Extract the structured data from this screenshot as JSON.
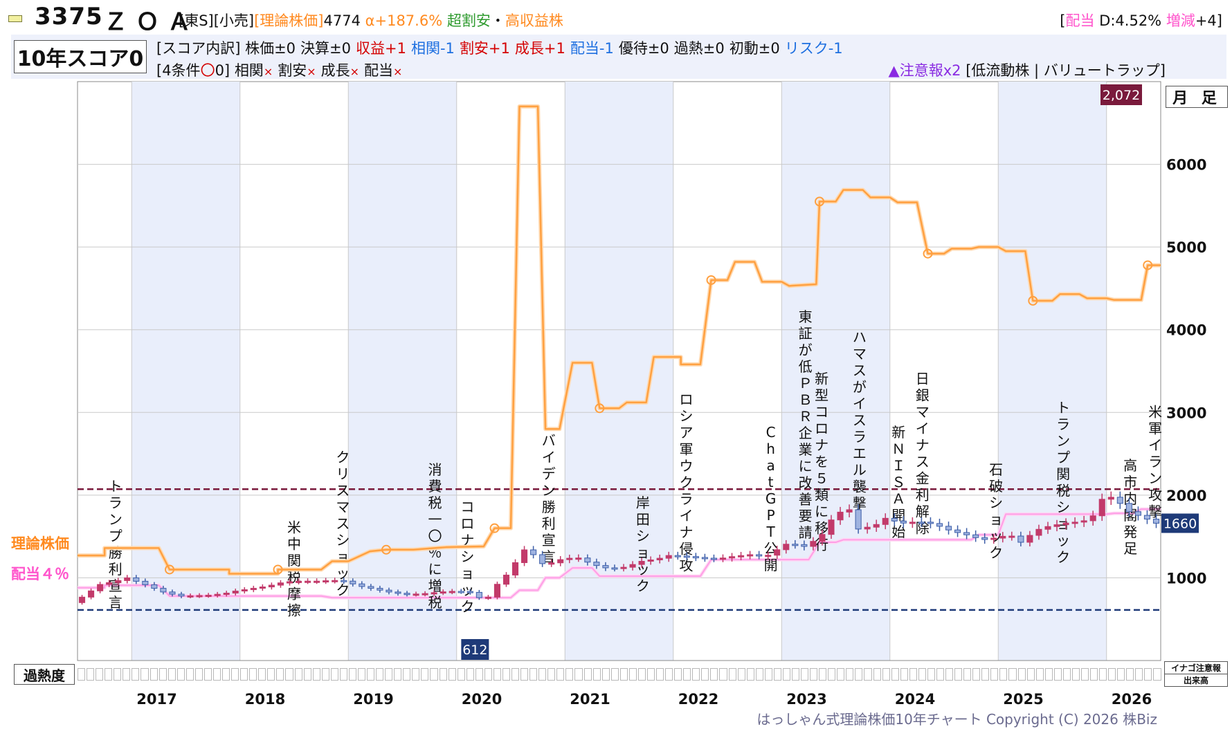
{
  "header": {
    "code": "3375",
    "name": "ＺＯＡ",
    "market": "[東S]",
    "sector": "[小売]",
    "theory_label": "[理論株価]",
    "theory_value": "4774",
    "alpha": "α+187.6%",
    "tag_cheap": "超割安",
    "sep": "・",
    "tag_income": "高収益株",
    "dividend_label": "配当",
    "dividend_value": "D:4.52%",
    "change_label": "増減",
    "change_value": "+4"
  },
  "score": {
    "title": "10年スコア0",
    "breakdown_prefix": "[スコア内訳]",
    "items": [
      {
        "label": "株価±0",
        "color": "#111111"
      },
      {
        "label": "決算±0",
        "color": "#111111"
      },
      {
        "label": "収益+1",
        "color": "#d40000"
      },
      {
        "label": "相関-1",
        "color": "#1d6fe0"
      },
      {
        "label": "割安+1",
        "color": "#d40000"
      },
      {
        "label": "成長+1",
        "color": "#d40000"
      },
      {
        "label": "配当-1",
        "color": "#1d6fe0"
      },
      {
        "label": "優待±0",
        "color": "#111111"
      },
      {
        "label": "過熱±0",
        "color": "#111111"
      },
      {
        "label": "初動±0",
        "color": "#111111"
      },
      {
        "label": "リスク-1",
        "color": "#1d6fe0"
      }
    ],
    "conditions_prefix": "[4条件",
    "conditions_mark": "〇",
    "conditions_count": "0]",
    "conditions": [
      "相関",
      "割安",
      "成長",
      "配当"
    ],
    "cross": "×"
  },
  "warning": {
    "text": "▲注意報x2",
    "detail": "[低流動株 | バリュートラップ]"
  },
  "panel": {
    "timeframe": "月 足",
    "theory_line_label": "理論株価",
    "dividend_line_label": "配当４％",
    "heat_label": "過熱度",
    "inago_label": "イナゴ注意報",
    "volume_label": "出来高",
    "copyright": "はっしゃん式理論株価10年チャート Copyright (C) 2026 株Biz"
  },
  "chart_data": {
    "type": "line",
    "title": "",
    "xlabel": "",
    "ylabel": "",
    "x_range": [
      2016.5,
      2026.5
    ],
    "ylim": [
      0,
      7000
    ],
    "y_ticks": [
      1000,
      2000,
      3000,
      4000,
      5000,
      6000
    ],
    "x_ticks": [
      "2017",
      "2018",
      "2019",
      "2020",
      "2021",
      "2022",
      "2023",
      "2024",
      "2025",
      "2026"
    ],
    "grid": true,
    "high_line": 2072,
    "low_line": 612,
    "last_price": 1660,
    "high_label": "2,072",
    "low_label": "612",
    "last_label": "1660",
    "colors": {
      "theory": "#ffa040",
      "dividend": "#ff9ee6",
      "up_candle": "#c23a6a",
      "down_candle": "#3d5ea8",
      "high_line": "#7a1a3c",
      "low_line": "#1e3a78",
      "band": "#e9eefb"
    },
    "theory_series": [
      [
        2016.5,
        1270
      ],
      [
        2016.75,
        1270
      ],
      [
        2016.75,
        1360
      ],
      [
        2017.25,
        1360
      ],
      [
        2017.35,
        1100
      ],
      [
        2017.9,
        1100
      ],
      [
        2017.9,
        1050
      ],
      [
        2018.35,
        1050
      ],
      [
        2018.35,
        1100
      ],
      [
        2018.75,
        1100
      ],
      [
        2018.85,
        1200
      ],
      [
        2019.0,
        1200
      ],
      [
        2019.2,
        1320
      ],
      [
        2019.35,
        1340
      ],
      [
        2019.6,
        1340
      ],
      [
        2019.9,
        1370
      ],
      [
        2020.25,
        1380
      ],
      [
        2020.35,
        1600
      ],
      [
        2020.5,
        1600
      ],
      [
        2020.58,
        6700
      ],
      [
        2020.75,
        6700
      ],
      [
        2020.82,
        2800
      ],
      [
        2020.95,
        2800
      ],
      [
        2021.07,
        3600
      ],
      [
        2021.25,
        3600
      ],
      [
        2021.32,
        3050
      ],
      [
        2021.5,
        3050
      ],
      [
        2021.57,
        3120
      ],
      [
        2021.75,
        3120
      ],
      [
        2021.82,
        3670
      ],
      [
        2022.07,
        3670
      ],
      [
        2022.07,
        3580
      ],
      [
        2022.25,
        3580
      ],
      [
        2022.35,
        4600
      ],
      [
        2022.5,
        4600
      ],
      [
        2022.57,
        4820
      ],
      [
        2022.75,
        4820
      ],
      [
        2022.82,
        4580
      ],
      [
        2023.0,
        4580
      ],
      [
        2023.07,
        4530
      ],
      [
        2023.32,
        4550
      ],
      [
        2023.35,
        5550
      ],
      [
        2023.5,
        5550
      ],
      [
        2023.57,
        5690
      ],
      [
        2023.75,
        5690
      ],
      [
        2023.82,
        5600
      ],
      [
        2024.0,
        5600
      ],
      [
        2024.07,
        5540
      ],
      [
        2024.25,
        5540
      ],
      [
        2024.35,
        4920
      ],
      [
        2024.5,
        4920
      ],
      [
        2024.57,
        4980
      ],
      [
        2024.75,
        4980
      ],
      [
        2024.82,
        5000
      ],
      [
        2025.0,
        5000
      ],
      [
        2025.07,
        4950
      ],
      [
        2025.25,
        4950
      ],
      [
        2025.32,
        4350
      ],
      [
        2025.5,
        4350
      ],
      [
        2025.57,
        4430
      ],
      [
        2025.75,
        4430
      ],
      [
        2025.82,
        4380
      ],
      [
        2026.0,
        4380
      ],
      [
        2026.07,
        4360
      ],
      [
        2026.32,
        4360
      ],
      [
        2026.38,
        4780
      ],
      [
        2026.5,
        4780
      ]
    ],
    "theory_markers": [
      [
        2017.35,
        1100
      ],
      [
        2018.35,
        1100
      ],
      [
        2019.35,
        1340
      ],
      [
        2020.35,
        1600
      ],
      [
        2021.32,
        3050
      ],
      [
        2022.35,
        4600
      ],
      [
        2023.35,
        5550
      ],
      [
        2024.35,
        4920
      ],
      [
        2025.32,
        4350
      ],
      [
        2026.38,
        4780
      ]
    ],
    "dividend_series": [
      [
        2016.5,
        880
      ],
      [
        2016.75,
        880
      ],
      [
        2016.75,
        910
      ],
      [
        2017.25,
        910
      ],
      [
        2017.35,
        780
      ],
      [
        2018.75,
        780
      ],
      [
        2018.85,
        760
      ],
      [
        2020.5,
        760
      ],
      [
        2020.58,
        850
      ],
      [
        2020.75,
        850
      ],
      [
        2020.82,
        1000
      ],
      [
        2020.95,
        1000
      ],
      [
        2021.07,
        1120
      ],
      [
        2021.25,
        1120
      ],
      [
        2021.32,
        1020
      ],
      [
        2022.25,
        1020
      ],
      [
        2022.35,
        1220
      ],
      [
        2023.25,
        1220
      ],
      [
        2023.35,
        1430
      ],
      [
        2023.5,
        1430
      ],
      [
        2023.57,
        1460
      ],
      [
        2024.75,
        1460
      ],
      [
        2024.82,
        1520
      ],
      [
        2025.0,
        1520
      ],
      [
        2025.07,
        1770
      ],
      [
        2026.0,
        1770
      ],
      [
        2026.07,
        1780
      ],
      [
        2026.25,
        1780
      ],
      [
        2026.32,
        1830
      ],
      [
        2026.5,
        1830
      ]
    ],
    "price_path": [
      [
        2016.5,
        700
      ],
      [
        2016.6,
        780
      ],
      [
        2016.75,
        920
      ],
      [
        2016.9,
        960
      ],
      [
        2017.0,
        1000
      ],
      [
        2017.2,
        900
      ],
      [
        2017.35,
        820
      ],
      [
        2017.5,
        780
      ],
      [
        2017.75,
        790
      ],
      [
        2017.9,
        810
      ],
      [
        2018.0,
        840
      ],
      [
        2018.15,
        870
      ],
      [
        2018.3,
        900
      ],
      [
        2018.45,
        950
      ],
      [
        2018.6,
        960
      ],
      [
        2018.75,
        960
      ],
      [
        2018.9,
        970
      ],
      [
        2019.0,
        960
      ],
      [
        2019.15,
        900
      ],
      [
        2019.3,
        860
      ],
      [
        2019.45,
        820
      ],
      [
        2019.6,
        800
      ],
      [
        2019.75,
        810
      ],
      [
        2019.9,
        830
      ],
      [
        2020.05,
        840
      ],
      [
        2020.2,
        820
      ],
      [
        2020.3,
        700
      ],
      [
        2020.4,
        900
      ],
      [
        2020.55,
        1100
      ],
      [
        2020.65,
        1350
      ],
      [
        2020.75,
        1280
      ],
      [
        2020.85,
        1150
      ],
      [
        2021.0,
        1220
      ],
      [
        2021.15,
        1250
      ],
      [
        2021.3,
        1160
      ],
      [
        2021.45,
        1110
      ],
      [
        2021.6,
        1130
      ],
      [
        2021.75,
        1200
      ],
      [
        2021.9,
        1230
      ],
      [
        2022.0,
        1270
      ],
      [
        2022.15,
        1260
      ],
      [
        2022.3,
        1240
      ],
      [
        2022.45,
        1230
      ],
      [
        2022.6,
        1260
      ],
      [
        2022.75,
        1280
      ],
      [
        2022.9,
        1260
      ],
      [
        2023.0,
        1340
      ],
      [
        2023.1,
        1420
      ],
      [
        2023.25,
        1380
      ],
      [
        2023.4,
        1490
      ],
      [
        2023.5,
        1700
      ],
      [
        2023.65,
        1870
      ],
      [
        2023.75,
        1590
      ],
      [
        2023.9,
        1630
      ],
      [
        2024.0,
        1720
      ],
      [
        2024.15,
        1660
      ],
      [
        2024.3,
        1680
      ],
      [
        2024.45,
        1650
      ],
      [
        2024.6,
        1570
      ],
      [
        2024.75,
        1520
      ],
      [
        2024.9,
        1460
      ],
      [
        2025.0,
        1480
      ],
      [
        2025.15,
        1520
      ],
      [
        2025.25,
        1430
      ],
      [
        2025.4,
        1580
      ],
      [
        2025.5,
        1620
      ],
      [
        2025.65,
        1660
      ],
      [
        2025.8,
        1680
      ],
      [
        2025.9,
        1710
      ],
      [
        2026.0,
        1950
      ],
      [
        2026.1,
        1980
      ],
      [
        2026.25,
        1800
      ],
      [
        2026.4,
        1720
      ],
      [
        2026.5,
        1660
      ]
    ],
    "events": [
      {
        "x": 2016.85,
        "text": "トランプ勝利宣言",
        "top_value": 2050
      },
      {
        "x": 2018.5,
        "text": "米中関税摩擦",
        "top_value": 1550
      },
      {
        "x": 2018.95,
        "text": "クリスマスショック",
        "top_value": 2400
      },
      {
        "x": 2019.8,
        "text": "消費税一〇％に増税",
        "top_value": 2250
      },
      {
        "x": 2020.1,
        "text": "コロナショック",
        "top_value": 1800
      },
      {
        "x": 2020.85,
        "text": "バイデン勝利宣言",
        "top_value": 2600
      },
      {
        "x": 2021.72,
        "text": "岸田ショック",
        "top_value": 1850
      },
      {
        "x": 2022.12,
        "text": "ロシア軍ウクライナ侵攻",
        "top_value": 3100
      },
      {
        "x": 2022.9,
        "text": "ChatGPT公開",
        "top_value": 2700
      },
      {
        "x": 2023.22,
        "text": "東証が低ＰＢＲ企業に改善要請",
        "top_value": 4100
      },
      {
        "x": 2023.37,
        "text": "新型コロナを５類に移行",
        "top_value": 3350
      },
      {
        "x": 2023.72,
        "text": "ハマスがイスラエル襲撃",
        "top_value": 3850
      },
      {
        "x": 2024.08,
        "text": "新ＮＩＳＡ開始",
        "top_value": 2700
      },
      {
        "x": 2024.3,
        "text": "日銀マイナス金利解除",
        "top_value": 3350
      },
      {
        "x": 2024.98,
        "text": "石破ショック",
        "top_value": 2250
      },
      {
        "x": 2025.6,
        "text": "トランプ関税ショック",
        "top_value": 3000
      },
      {
        "x": 2026.22,
        "text": "高市内閣発足",
        "top_value": 2300
      },
      {
        "x": 2026.45,
        "text": "米軍イラン攻撃",
        "top_value": 2950
      }
    ]
  }
}
